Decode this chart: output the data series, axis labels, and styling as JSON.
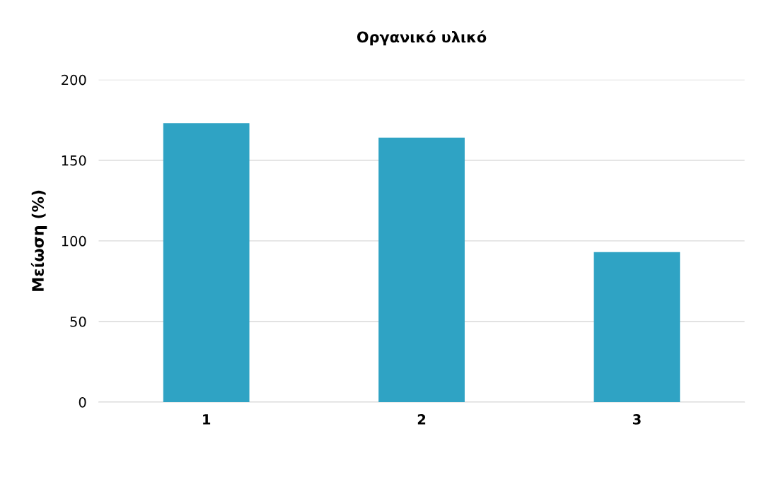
{
  "chart_data": {
    "type": "bar",
    "title": "Οργανικό υλικό",
    "ylabel": "Μείωση (%)",
    "categories": [
      "1",
      "2",
      "3"
    ],
    "values": [
      173,
      164,
      93
    ],
    "color": "#2fa3c4",
    "ylim": [
      0,
      200
    ],
    "yticks": [
      0,
      50,
      100,
      150,
      200
    ],
    "grid": "y",
    "legend": false
  }
}
